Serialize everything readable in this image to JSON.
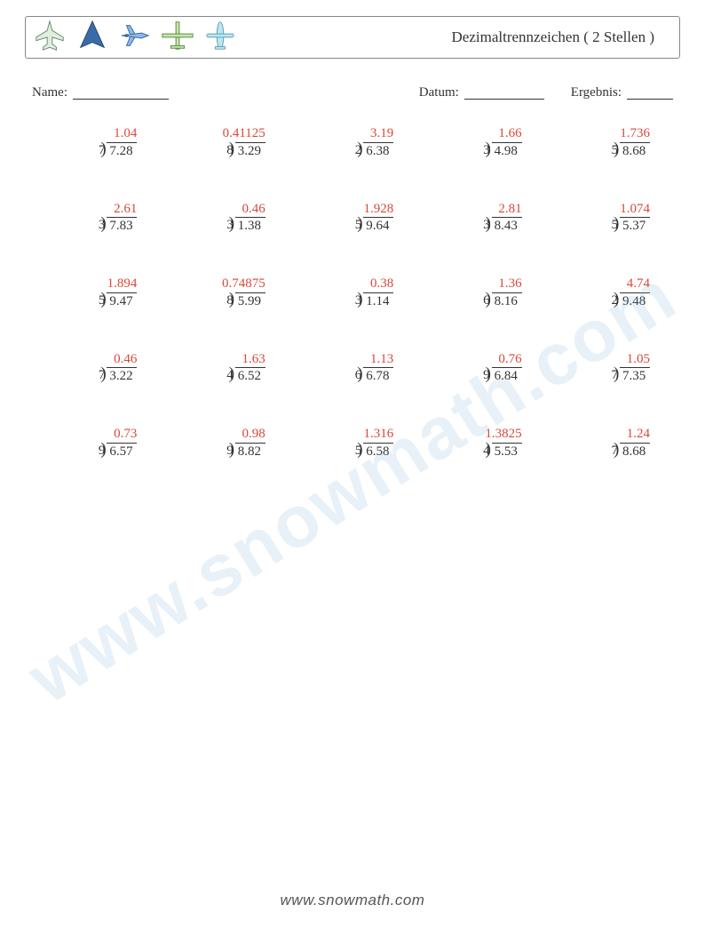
{
  "header": {
    "title": "Dezimaltrennzeichen ( 2 Stellen )",
    "icons": [
      {
        "name": "plane-fighter-icon",
        "fill": "#dfeee0",
        "stroke": "#6a8a6a"
      },
      {
        "name": "plane-delta-icon",
        "fill": "#3b6aa8",
        "stroke": "#27496e"
      },
      {
        "name": "plane-jet-icon",
        "fill": "#8fb8e8",
        "stroke": "#3a6aa0"
      },
      {
        "name": "plane-prop-icon",
        "fill": "#c8e6b0",
        "stroke": "#5a8a3a"
      },
      {
        "name": "plane-top-icon",
        "fill": "#bfe5ef",
        "stroke": "#5aa0b8"
      }
    ]
  },
  "info": {
    "name_label": "Name:",
    "date_label": "Datum:",
    "result_label": "Ergebnis:"
  },
  "answer_color": "#d9483b",
  "text_color": "#333333",
  "problems": [
    [
      {
        "divisor": "7",
        "dividend": "7.28",
        "answer": "1.04"
      },
      {
        "divisor": "8",
        "dividend": "3.29",
        "answer": "0.41125"
      },
      {
        "divisor": "2",
        "dividend": "6.38",
        "answer": "3.19"
      },
      {
        "divisor": "3",
        "dividend": "4.98",
        "answer": "1.66"
      },
      {
        "divisor": "5",
        "dividend": "8.68",
        "answer": "1.736"
      }
    ],
    [
      {
        "divisor": "3",
        "dividend": "7.83",
        "answer": "2.61"
      },
      {
        "divisor": "3",
        "dividend": "1.38",
        "answer": "0.46"
      },
      {
        "divisor": "5",
        "dividend": "9.64",
        "answer": "1.928"
      },
      {
        "divisor": "3",
        "dividend": "8.43",
        "answer": "2.81"
      },
      {
        "divisor": "5",
        "dividend": "5.37",
        "answer": "1.074"
      }
    ],
    [
      {
        "divisor": "5",
        "dividend": "9.47",
        "answer": "1.894"
      },
      {
        "divisor": "8",
        "dividend": "5.99",
        "answer": "0.74875"
      },
      {
        "divisor": "3",
        "dividend": "1.14",
        "answer": "0.38"
      },
      {
        "divisor": "6",
        "dividend": "8.16",
        "answer": "1.36"
      },
      {
        "divisor": "2",
        "dividend": "9.48",
        "answer": "4.74"
      }
    ],
    [
      {
        "divisor": "7",
        "dividend": "3.22",
        "answer": "0.46"
      },
      {
        "divisor": "4",
        "dividend": "6.52",
        "answer": "1.63"
      },
      {
        "divisor": "6",
        "dividend": "6.78",
        "answer": "1.13"
      },
      {
        "divisor": "9",
        "dividend": "6.84",
        "answer": "0.76"
      },
      {
        "divisor": "7",
        "dividend": "7.35",
        "answer": "1.05"
      }
    ],
    [
      {
        "divisor": "9",
        "dividend": "6.57",
        "answer": "0.73"
      },
      {
        "divisor": "9",
        "dividend": "8.82",
        "answer": "0.98"
      },
      {
        "divisor": "5",
        "dividend": "6.58",
        "answer": "1.316"
      },
      {
        "divisor": "4",
        "dividend": "5.53",
        "answer": "1.3825"
      },
      {
        "divisor": "7",
        "dividend": "8.68",
        "answer": "1.24"
      }
    ]
  ],
  "watermark": "www.snowmath.com",
  "footer": "www.snowmath.com"
}
